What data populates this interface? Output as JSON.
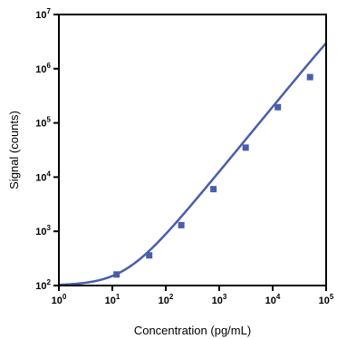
{
  "colors": {
    "series": "#4a5ea8",
    "axis": "#000000"
  },
  "chart_data": {
    "type": "scatter",
    "xlabel": "Concentration (pg/mL)",
    "ylabel": "Signal (counts)",
    "xscale": "log",
    "yscale": "log",
    "xlim": [
      1,
      100000
    ],
    "ylim": [
      100,
      10000000
    ],
    "grid": false,
    "x_ticks": [
      {
        "base": "10",
        "exp": "0"
      },
      {
        "base": "10",
        "exp": "1"
      },
      {
        "base": "10",
        "exp": "2"
      },
      {
        "base": "10",
        "exp": "3"
      },
      {
        "base": "10",
        "exp": "4"
      },
      {
        "base": "10",
        "exp": "5"
      }
    ],
    "y_ticks": [
      {
        "base": "10",
        "exp": "2"
      },
      {
        "base": "10",
        "exp": "3"
      },
      {
        "base": "10",
        "exp": "4"
      },
      {
        "base": "10",
        "exp": "5"
      },
      {
        "base": "10",
        "exp": "6"
      },
      {
        "base": "10",
        "exp": "7"
      }
    ],
    "points": [
      {
        "x": 12,
        "y": 160
      },
      {
        "x": 49,
        "y": 360
      },
      {
        "x": 195,
        "y": 1300
      },
      {
        "x": 780,
        "y": 6000
      },
      {
        "x": 3125,
        "y": 35000
      },
      {
        "x": 12500,
        "y": 195000
      },
      {
        "x": 50000,
        "y": 700000
      }
    ],
    "fit_curve": {
      "model": "4PL",
      "bottom": 100,
      "top": 50000000,
      "ec50": 1000000,
      "hill": 1.2
    }
  }
}
